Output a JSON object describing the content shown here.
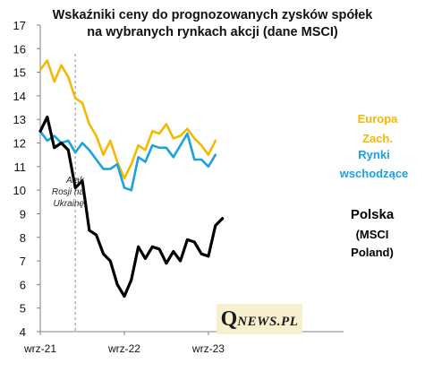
{
  "chart_data": {
    "type": "line",
    "title_line1": "Wskaźniki  ceny do prognozowanych  zysków spółek",
    "title_line2": "na wybranych rynkach akcji (dane MSCI)",
    "ylim": [
      4,
      17
    ],
    "yticks": [
      4,
      5,
      6,
      7,
      8,
      9,
      10,
      11,
      12,
      13,
      14,
      15,
      16,
      17
    ],
    "xticks": [
      {
        "index": 0,
        "label": "wrz-21"
      },
      {
        "index": 12,
        "label": "wrz-22"
      },
      {
        "index": 24,
        "label": "wrz-23"
      }
    ],
    "grid": false,
    "series": [
      {
        "name": "Europa Zach.",
        "label_lines": [
          "Europa",
          "Zach."
        ],
        "color": "#f5b800",
        "values": [
          15.1,
          15.5,
          14.6,
          15.3,
          14.8,
          13.9,
          13.7,
          12.8,
          12.3,
          11.5,
          12.1,
          11.2,
          10.5,
          11.1,
          11.9,
          11.7,
          12.5,
          12.4,
          12.8,
          12.2,
          12.3,
          12.6,
          12.2,
          11.9,
          11.5,
          12.1
        ]
      },
      {
        "name": "Rynki wschodzące",
        "label_lines": [
          "Rynki",
          "wschodzące"
        ],
        "color": "#1aa1e0",
        "values": [
          12.5,
          12.1,
          12.3,
          12.0,
          12.1,
          11.6,
          12.0,
          11.7,
          11.3,
          10.9,
          10.9,
          11.1,
          10.1,
          10.0,
          11.4,
          11.2,
          11.9,
          11.8,
          11.8,
          11.4,
          11.9,
          12.4,
          11.3,
          11.3,
          11.0,
          11.5
        ]
      },
      {
        "name": "Polska (MSCI Poland)",
        "label_lines": [
          "Polska",
          "(MSCI",
          "Poland)"
        ],
        "color": "#000000",
        "values": [
          12.5,
          13.1,
          11.8,
          12.0,
          11.7,
          10.1,
          10.4,
          8.3,
          8.1,
          7.3,
          7.0,
          6.0,
          5.5,
          6.2,
          7.6,
          7.1,
          7.6,
          7.5,
          6.9,
          7.4,
          7.0,
          7.9,
          7.8,
          7.3,
          7.2,
          8.5,
          8.8
        ]
      }
    ],
    "annotation": {
      "lines": [
        "Atak",
        "Rosji na",
        "Ukrainę"
      ],
      "index": 5
    },
    "watermark": "QNEWS.PL",
    "colors": {
      "axis": "#808080",
      "event_line": "#8a8a8a"
    }
  }
}
